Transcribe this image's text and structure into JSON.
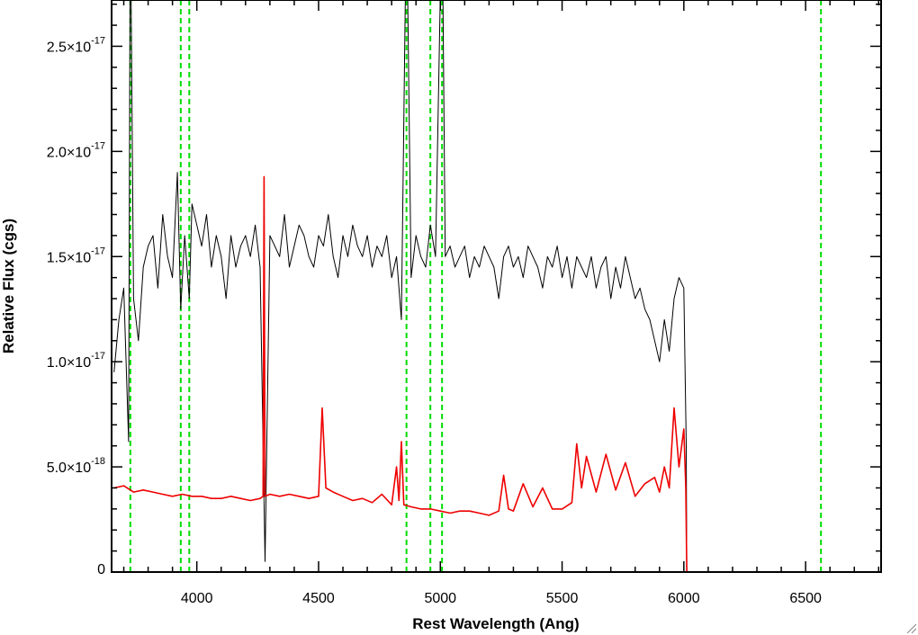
{
  "chart_data": {
    "type": "line",
    "xlabel": "Rest Wavelength (Ang)",
    "ylabel": "Relative Flux (cgs)",
    "xlim": [
      3650,
      6810
    ],
    "ylim": [
      0,
      2.72e-17
    ],
    "x_ticks": [
      {
        "value": 4000,
        "label": "4000"
      },
      {
        "value": 4500,
        "label": "4500"
      },
      {
        "value": 5000,
        "label": "5000"
      },
      {
        "value": 5500,
        "label": "5500"
      },
      {
        "value": 6000,
        "label": "6000"
      },
      {
        "value": 6500,
        "label": "6500"
      }
    ],
    "y_ticks": [
      {
        "value": 0,
        "mantissa": "0",
        "exponent": ""
      },
      {
        "value": 5e-18,
        "mantissa": "5.0×10",
        "exponent": "-18"
      },
      {
        "value": 1e-17,
        "mantissa": "1.0×10",
        "exponent": "-17"
      },
      {
        "value": 1.5e-17,
        "mantissa": "1.5×10",
        "exponent": "-17"
      },
      {
        "value": 2e-17,
        "mantissa": "2.0×10",
        "exponent": "-17"
      },
      {
        "value": 2.5e-17,
        "mantissa": "2.5×10",
        "exponent": "-17"
      }
    ],
    "vertical_lines": {
      "color": "#00dd00",
      "style": "dashed",
      "x": [
        3727,
        3934,
        3969,
        4861,
        4959,
        5007,
        6563
      ]
    },
    "series": [
      {
        "color": "#000000",
        "x": [
          3660,
          3680,
          3700,
          3720,
          3727,
          3740,
          3760,
          3780,
          3800,
          3820,
          3840,
          3860,
          3880,
          3900,
          3920,
          3934,
          3950,
          3969,
          3980,
          4000,
          4020,
          4040,
          4060,
          4080,
          4100,
          4120,
          4140,
          4160,
          4180,
          4200,
          4220,
          4240,
          4260,
          4280,
          4300,
          4320,
          4340,
          4360,
          4380,
          4400,
          4420,
          4440,
          4460,
          4480,
          4500,
          4520,
          4540,
          4560,
          4580,
          4600,
          4620,
          4640,
          4660,
          4680,
          4700,
          4720,
          4740,
          4760,
          4780,
          4800,
          4820,
          4840,
          4861,
          4880,
          4900,
          4920,
          4940,
          4959,
          4980,
          5007,
          5020,
          5040,
          5060,
          5080,
          5100,
          5120,
          5140,
          5160,
          5180,
          5200,
          5220,
          5240,
          5260,
          5280,
          5300,
          5320,
          5340,
          5360,
          5380,
          5400,
          5420,
          5440,
          5460,
          5480,
          5500,
          5520,
          5540,
          5560,
          5580,
          5600,
          5620,
          5640,
          5660,
          5680,
          5700,
          5720,
          5740,
          5760,
          5780,
          5800,
          5820,
          5840,
          5860,
          5880,
          5900,
          5920,
          5940,
          5960,
          5980,
          6000,
          6010,
          6012
        ],
        "y": [
          9.5e-18,
          1.2e-17,
          1.35e-17,
          6.2e-18,
          3.2e-17,
          1.3e-17,
          1.1e-17,
          1.45e-17,
          1.55e-17,
          1.6e-17,
          1.35e-17,
          1.7e-17,
          1.5e-17,
          1.4e-17,
          1.9e-17,
          1.25e-17,
          1.6e-17,
          1.3e-17,
          1.75e-17,
          1.65e-17,
          1.55e-17,
          1.7e-17,
          1.45e-17,
          1.6e-17,
          1.5e-17,
          1.3e-17,
          1.6e-17,
          1.45e-17,
          1.55e-17,
          1.6e-17,
          1.5e-17,
          1.65e-17,
          1.45e-17,
          5e-19,
          1.6e-17,
          1.55e-17,
          1.5e-17,
          1.7e-17,
          1.45e-17,
          1.55e-17,
          1.65e-17,
          1.6e-17,
          1.5e-17,
          1.45e-17,
          1.6e-17,
          1.55e-17,
          1.7e-17,
          1.5e-17,
          1.4e-17,
          1.6e-17,
          1.5e-17,
          1.65e-17,
          1.55e-17,
          1.5e-17,
          1.6e-17,
          1.45e-17,
          1.55e-17,
          1.5e-17,
          1.6e-17,
          1.4e-17,
          1.5e-17,
          1.2e-17,
          3.2e-17,
          1.4e-17,
          1.6e-17,
          1.5e-17,
          1.45e-17,
          1.65e-17,
          1.5e-17,
          3.2e-17,
          1.5e-17,
          1.55e-17,
          1.45e-17,
          1.5e-17,
          1.55e-17,
          1.4e-17,
          1.5e-17,
          1.45e-17,
          1.55e-17,
          1.5e-17,
          1.45e-17,
          1.3e-17,
          1.5e-17,
          1.55e-17,
          1.45e-17,
          1.5e-17,
          1.4e-17,
          1.55e-17,
          1.5e-17,
          1.45e-17,
          1.35e-17,
          1.5e-17,
          1.45e-17,
          1.55e-17,
          1.4e-17,
          1.5e-17,
          1.35e-17,
          1.5e-17,
          1.45e-17,
          1.4e-17,
          1.5e-17,
          1.35e-17,
          1.45e-17,
          1.5e-17,
          1.3e-17,
          1.45e-17,
          1.35e-17,
          1.5e-17,
          1.4e-17,
          1.3e-17,
          1.35e-17,
          1.25e-17,
          1.2e-17,
          1.1e-17,
          1e-17,
          1.2e-17,
          1.05e-17,
          1.3e-17,
          1.4e-17,
          1.35e-17,
          6e-18,
          0
        ]
      },
      {
        "color": "#ee0000",
        "x": [
          3660,
          3700,
          3740,
          3780,
          3820,
          3860,
          3900,
          3940,
          3980,
          4020,
          4060,
          4100,
          4140,
          4180,
          4220,
          4260,
          4272,
          4276,
          4280,
          4300,
          4340,
          4380,
          4420,
          4460,
          4500,
          4515,
          4530,
          4560,
          4600,
          4640,
          4680,
          4720,
          4760,
          4800,
          4820,
          4830,
          4840,
          4850,
          4880,
          4920,
          4960,
          5000,
          5040,
          5080,
          5120,
          5160,
          5200,
          5240,
          5260,
          5280,
          5300,
          5340,
          5380,
          5420,
          5460,
          5500,
          5540,
          5560,
          5580,
          5600,
          5640,
          5680,
          5720,
          5760,
          5800,
          5840,
          5880,
          5900,
          5920,
          5940,
          5960,
          5980,
          6000,
          6008,
          6012,
          6100,
          6300,
          6500,
          6700,
          6810
        ],
        "y": [
          4e-18,
          4.1e-18,
          3.8e-18,
          3.9e-18,
          3.8e-18,
          3.7e-18,
          3.6e-18,
          3.7e-18,
          3.6e-18,
          3.6e-18,
          3.5e-18,
          3.5e-18,
          3.6e-18,
          3.5e-18,
          3.4e-18,
          3.5e-18,
          3.6e-18,
          1.88e-17,
          3.6e-18,
          3.7e-18,
          3.6e-18,
          3.7e-18,
          3.6e-18,
          3.5e-18,
          3.6e-18,
          7.8e-18,
          4e-18,
          3.8e-18,
          3.6e-18,
          3.4e-18,
          3.5e-18,
          3.3e-18,
          3.7e-18,
          3.2e-18,
          5e-18,
          3.4e-18,
          6.2e-18,
          3.2e-18,
          3.1e-18,
          3e-18,
          3e-18,
          2.9e-18,
          2.8e-18,
          2.9e-18,
          2.9e-18,
          2.8e-18,
          2.7e-18,
          2.9e-18,
          4.6e-18,
          3e-18,
          2.9e-18,
          4.2e-18,
          3.1e-18,
          4e-18,
          3e-18,
          3e-18,
          3.3e-18,
          6.1e-18,
          4e-18,
          5.5e-18,
          3.8e-18,
          5.6e-18,
          3.9e-18,
          5.2e-18,
          3.6e-18,
          4.2e-18,
          4.5e-18,
          3.8e-18,
          5e-18,
          4e-18,
          7.8e-18,
          5e-18,
          6.8e-18,
          4e-18,
          0,
          0,
          0,
          0,
          0,
          0
        ]
      }
    ]
  }
}
